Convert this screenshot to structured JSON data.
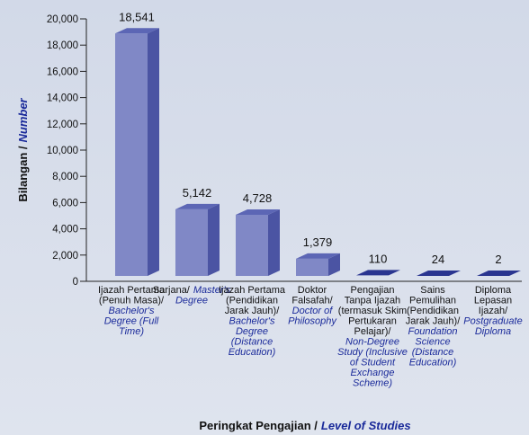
{
  "chart_data": {
    "type": "bar3d",
    "y_label": {
      "ms": "Bilangan /",
      "en": "Number"
    },
    "x_label": {
      "ms": "Peringkat Pengajian /",
      "en": "Level of Studies"
    },
    "categories": [
      [
        {
          "ms": "Ijazah Pertama"
        },
        {
          "ms": "(Penuh Masa)/"
        },
        {
          "en": "Bachelor's"
        },
        {
          "en": "Degree (Full"
        },
        {
          "en": "Time)"
        }
      ],
      [
        {
          "ms": "Sarjana/",
          "en": "Master's"
        },
        {
          "en": "Degree"
        }
      ],
      [
        {
          "ms": "Ijazah Pertama"
        },
        {
          "ms": "(Pendidikan"
        },
        {
          "ms": "Jarak Jauh)/"
        },
        {
          "en": "Bachelor's"
        },
        {
          "en": "Degree"
        },
        {
          "en": "(Distance"
        },
        {
          "en": "Education)"
        }
      ],
      [
        {
          "ms": "Doktor"
        },
        {
          "ms": "Falsafah/"
        },
        {
          "en": "Doctor of"
        },
        {
          "en": "Philosophy"
        }
      ],
      [
        {
          "ms": "Pengajian"
        },
        {
          "ms": "Tanpa Ijazah"
        },
        {
          "ms": "(termasuk Skim"
        },
        {
          "ms": "Pertukaran"
        },
        {
          "ms": "Pelajar)/"
        },
        {
          "en": "Non-Degree"
        },
        {
          "en": "Study (Inclusive"
        },
        {
          "en": "of Student"
        },
        {
          "en": "Exchange"
        },
        {
          "en": "Scheme)"
        }
      ],
      [
        {
          "ms": "Sains"
        },
        {
          "ms": "Pemulihan"
        },
        {
          "ms": "(Pendidikan"
        },
        {
          "ms": "Jarak Jauh)/"
        },
        {
          "en": "Foundation"
        },
        {
          "en": "Science"
        },
        {
          "en": "(Distance"
        },
        {
          "en": "Education)"
        }
      ],
      [
        {
          "ms": "Diploma"
        },
        {
          "ms": "Lepasan"
        },
        {
          "ms": "Ijazah/"
        },
        {
          "en": "Postgraduate"
        },
        {
          "en": "Diploma"
        }
      ]
    ],
    "values": [
      18541,
      5142,
      4728,
      1379,
      110,
      24,
      2
    ],
    "value_labels": [
      "18,541",
      "5,142",
      "4,728",
      "1,379",
      "110",
      "24",
      "2"
    ],
    "colors": {
      "front": "#8088c6",
      "side": "#4b54a3",
      "top": "#5c66b5",
      "flat": "#2a3590"
    },
    "ylim": [
      0,
      20000
    ],
    "yticks": [
      0,
      {
        "value": 2000,
        "label": "2,000"
      },
      {
        "value": 4000,
        "label": "4,000"
      },
      {
        "value": 6000,
        "label": "6,000"
      },
      {
        "value": 8000,
        "label": "8,000"
      },
      {
        "value": 10000,
        "label": "10,000"
      },
      {
        "value": 12000,
        "label": "12,000"
      },
      {
        "value": 14000,
        "label": "14,000"
      },
      {
        "value": 16000,
        "label": "16,000"
      },
      {
        "value": 18000,
        "label": "18,000"
      },
      {
        "value": 20000,
        "label": "20,000"
      }
    ]
  }
}
